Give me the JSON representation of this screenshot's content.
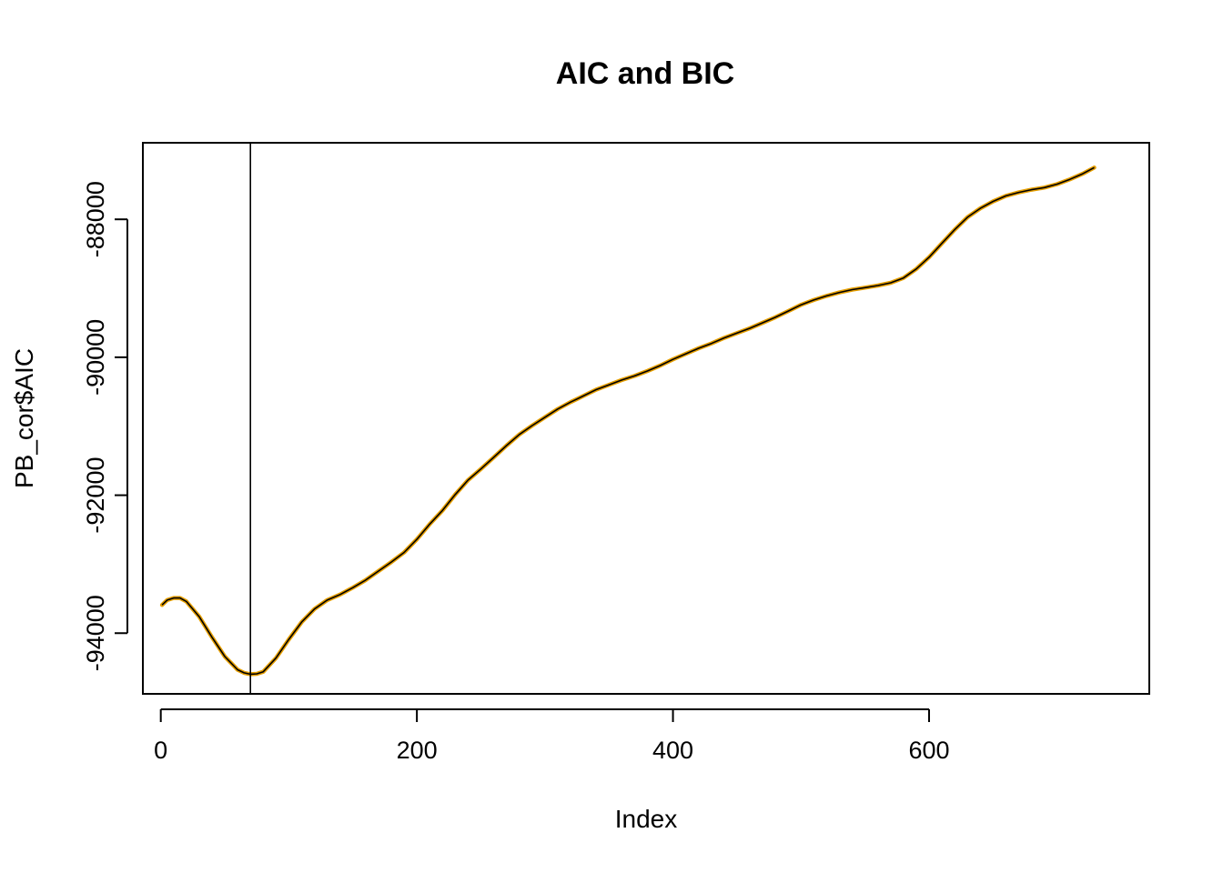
{
  "chart_data": {
    "type": "line",
    "title": "AIC and BIC",
    "xlabel": "Index",
    "ylabel": "PB_cor$AIC",
    "xlim": [
      -14,
      772
    ],
    "ylim": [
      -94880,
      -86890
    ],
    "xticks": [
      0,
      200,
      400,
      600
    ],
    "xtick_labels": [
      "0",
      "200",
      "400",
      "600"
    ],
    "yticks": [
      -94000,
      -92000,
      -90000,
      -88000
    ],
    "ytick_labels": [
      "-94000",
      "-92000",
      "-90000",
      "-88000"
    ],
    "grid": false,
    "legend": "none",
    "vline": {
      "x": 70
    },
    "series": [
      {
        "name": "AIC",
        "color": "#E69F00",
        "x": [
          1,
          5,
          10,
          15,
          20,
          30,
          40,
          50,
          60,
          65,
          70,
          75,
          80,
          90,
          100,
          110,
          120,
          130,
          140,
          150,
          160,
          170,
          180,
          190,
          200,
          210,
          220,
          230,
          240,
          250,
          260,
          270,
          280,
          290,
          300,
          310,
          320,
          330,
          340,
          350,
          360,
          370,
          380,
          390,
          400,
          410,
          420,
          430,
          440,
          450,
          460,
          470,
          480,
          490,
          500,
          510,
          520,
          530,
          540,
          550,
          560,
          570,
          580,
          590,
          600,
          610,
          620,
          630,
          640,
          650,
          660,
          670,
          680,
          690,
          700,
          710,
          720,
          729
        ],
        "y": [
          -93590,
          -93520,
          -93490,
          -93490,
          -93540,
          -93760,
          -94060,
          -94340,
          -94530,
          -94575,
          -94595,
          -94590,
          -94560,
          -94360,
          -94090,
          -93840,
          -93650,
          -93520,
          -93440,
          -93340,
          -93230,
          -93100,
          -92970,
          -92830,
          -92640,
          -92420,
          -92220,
          -91990,
          -91780,
          -91620,
          -91450,
          -91280,
          -91120,
          -90990,
          -90870,
          -90750,
          -90650,
          -90560,
          -90470,
          -90400,
          -90330,
          -90270,
          -90200,
          -90120,
          -90030,
          -89950,
          -89870,
          -89800,
          -89720,
          -89650,
          -89580,
          -89500,
          -89420,
          -89330,
          -89240,
          -89170,
          -89110,
          -89060,
          -89020,
          -88990,
          -88960,
          -88920,
          -88850,
          -88720,
          -88550,
          -88350,
          -88150,
          -87970,
          -87840,
          -87740,
          -87660,
          -87610,
          -87570,
          -87540,
          -87490,
          -87420,
          -87340,
          -87250
        ]
      }
    ]
  }
}
